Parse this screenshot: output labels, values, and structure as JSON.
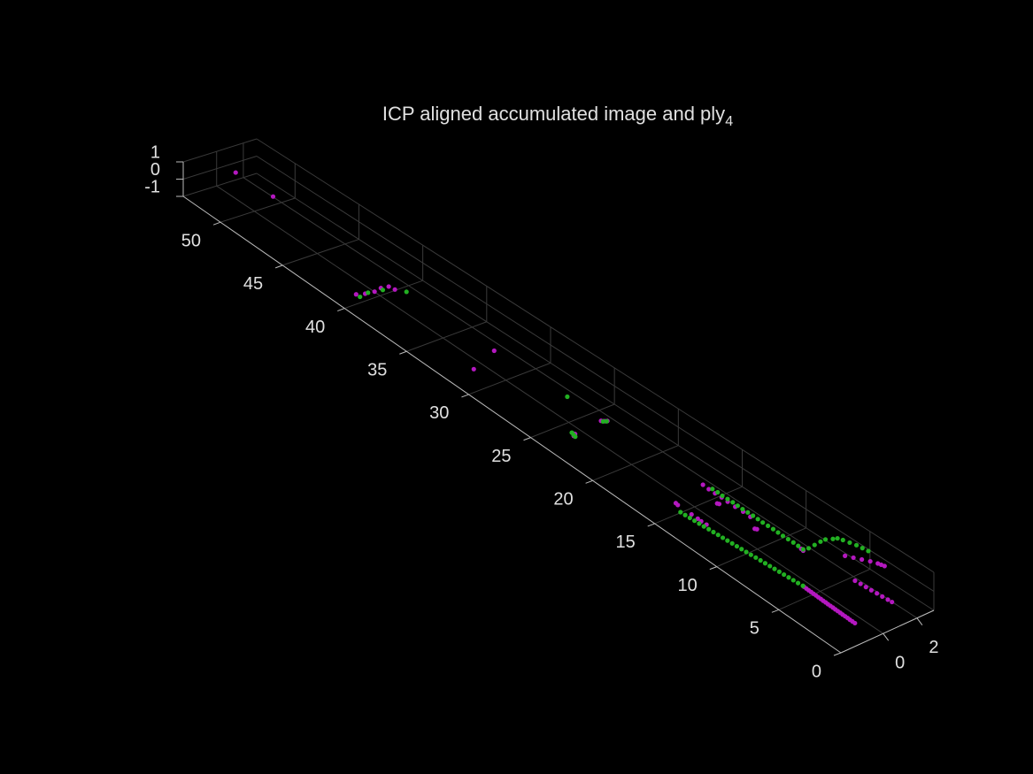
{
  "chart_data": {
    "type": "scatter3d",
    "title": "ICP aligned accumulated image and ply",
    "title_subscript": "4",
    "xlim": [
      -2.5,
      3
    ],
    "xticks": [
      0,
      2
    ],
    "ylim": [
      0,
      53
    ],
    "yticks": [
      0,
      5,
      10,
      15,
      20,
      25,
      30,
      35,
      40,
      45,
      50
    ],
    "zlim": [
      -1,
      1
    ],
    "zticks": [
      1,
      0,
      -1
    ],
    "grid": true,
    "series": [
      {
        "color": "#b418c0",
        "points": [
          [
            0.67,
            52.2,
            0
          ],
          [
            0.73,
            49.3,
            0
          ],
          [
            -2.21,
            39.4,
            0
          ],
          [
            -1.75,
            39.2,
            0
          ],
          [
            -1.18,
            39.1,
            0
          ],
          [
            -0.65,
            39.2,
            0
          ],
          [
            -0.19,
            39.1,
            0
          ],
          [
            -0.11,
            38.7,
            0
          ],
          [
            0.23,
            31.2,
            0
          ],
          [
            -1.82,
            30.4,
            0
          ],
          [
            -1.72,
            22.5,
            0
          ],
          [
            -1.6,
            22.7,
            0
          ],
          [
            -1.55,
            22.6,
            0
          ],
          [
            0.3,
            22.8,
            0
          ],
          [
            0.38,
            22.7,
            0
          ],
          [
            0.45,
            22.65,
            0
          ],
          [
            0.55,
            22.6,
            0
          ],
          [
            0.53,
            15.0,
            0
          ],
          [
            0.5,
            14.5,
            0
          ],
          [
            0.5,
            14.0,
            0
          ],
          [
            0.52,
            13.5,
            0
          ],
          [
            0.5,
            13.0,
            0
          ],
          [
            0.5,
            12.4,
            0
          ],
          [
            0.52,
            11.8,
            0
          ],
          [
            0.5,
            11.2,
            0
          ],
          [
            0.0,
            13.2,
            0
          ],
          [
            0.05,
            13.1,
            0
          ],
          [
            -0.01,
            10.2,
            0
          ],
          [
            0.05,
            10.1,
            0
          ],
          [
            0.57,
            7.1,
            0
          ],
          [
            0.6,
            7.3,
            0
          ],
          [
            -1.57,
            14.5,
            0
          ],
          [
            -1.6,
            14.3,
            0
          ],
          [
            -1.6,
            13.2,
            0
          ],
          [
            -1.6,
            12.7,
            0
          ],
          [
            -1.62,
            12.4,
            0
          ],
          [
            -1.6,
            12.0,
            0
          ],
          [
            -1.36,
            4.5,
            0
          ],
          [
            -1.37,
            4.3,
            0
          ],
          [
            -1.38,
            4.1,
            0
          ],
          [
            -1.38,
            3.9,
            0
          ],
          [
            -1.39,
            3.7,
            0
          ],
          [
            -1.39,
            3.5,
            0
          ],
          [
            -1.4,
            3.3,
            0
          ],
          [
            -1.4,
            3.1,
            0
          ],
          [
            -1.41,
            2.9,
            0
          ],
          [
            -1.41,
            2.7,
            0
          ],
          [
            -1.42,
            2.5,
            0
          ],
          [
            -1.42,
            2.3,
            0
          ],
          [
            -1.42,
            2.1,
            0
          ],
          [
            -1.43,
            1.9,
            0
          ],
          [
            -1.43,
            1.7,
            0
          ],
          [
            -1.43,
            1.5,
            0
          ],
          [
            -1.44,
            1.3,
            0
          ],
          [
            -1.44,
            1.1,
            0
          ],
          [
            -1.44,
            0.9,
            0
          ],
          [
            -1.45,
            0.7,
            0
          ],
          [
            -1.45,
            0.5,
            0
          ],
          [
            -1.45,
            0.3,
            0
          ],
          [
            0.8,
            3.3,
            0
          ],
          [
            0.83,
            2.9,
            0
          ],
          [
            0.85,
            2.5,
            0
          ],
          [
            0.87,
            2.1,
            0
          ],
          [
            0.9,
            1.7,
            0
          ],
          [
            0.92,
            1.3,
            0
          ],
          [
            0.95,
            0.9,
            0
          ],
          [
            0.97,
            0.6,
            0
          ],
          [
            1.8,
            5.4,
            0
          ],
          [
            2.0,
            5.0,
            0
          ],
          [
            2.2,
            4.6,
            0
          ],
          [
            2.4,
            4.2,
            0
          ],
          [
            2.55,
            3.8,
            0
          ],
          [
            2.6,
            3.6,
            0
          ],
          [
            2.65,
            3.4,
            0
          ]
        ]
      },
      {
        "color": "#22b022",
        "points": [
          [
            -2.2,
            39.1,
            0
          ],
          [
            -1.55,
            39.2,
            0
          ],
          [
            -0.69,
            39.0,
            0
          ],
          [
            0.26,
            38.2,
            0
          ],
          [
            0.4,
            25.6,
            0
          ],
          [
            -1.65,
            22.6,
            0
          ],
          [
            -1.6,
            22.8,
            0
          ],
          [
            -1.7,
            22.4,
            0
          ],
          [
            0.35,
            22.7,
            0
          ],
          [
            0.5,
            22.6,
            0
          ],
          [
            -1.9,
            13.7,
            0
          ],
          [
            -1.88,
            13.35,
            0
          ],
          [
            -1.86,
            13.0,
            0
          ],
          [
            -1.84,
            12.65,
            0
          ],
          [
            -1.82,
            12.3,
            0
          ],
          [
            -1.8,
            11.95,
            0
          ],
          [
            -1.77,
            11.6,
            0
          ],
          [
            -1.75,
            11.25,
            0
          ],
          [
            -1.73,
            10.9,
            0
          ],
          [
            -1.71,
            10.55,
            0
          ],
          [
            -1.69,
            10.2,
            0
          ],
          [
            -1.67,
            9.85,
            0
          ],
          [
            -1.65,
            9.5,
            0
          ],
          [
            -1.63,
            9.15,
            0
          ],
          [
            -1.61,
            8.8,
            0
          ],
          [
            -1.59,
            8.45,
            0
          ],
          [
            -1.56,
            8.1,
            0
          ],
          [
            -1.54,
            7.75,
            0
          ],
          [
            -1.52,
            7.4,
            0
          ],
          [
            -1.5,
            7.05,
            0
          ],
          [
            -1.48,
            6.7,
            0
          ],
          [
            -1.46,
            6.35,
            0
          ],
          [
            -1.44,
            6.0,
            0
          ],
          [
            -1.42,
            5.65,
            0
          ],
          [
            -1.4,
            5.3,
            0
          ],
          [
            -1.38,
            4.95,
            0
          ],
          [
            -1.35,
            4.6,
            0
          ],
          [
            0.65,
            14.4,
            0
          ],
          [
            0.66,
            14.0,
            0
          ],
          [
            0.64,
            13.6,
            0
          ],
          [
            0.65,
            13.2,
            0
          ],
          [
            0.66,
            12.8,
            0
          ],
          [
            0.65,
            12.4,
            0
          ],
          [
            0.64,
            12.0,
            0
          ],
          [
            0.65,
            11.6,
            0
          ],
          [
            0.66,
            11.2,
            0
          ],
          [
            0.65,
            10.8,
            0
          ],
          [
            0.64,
            10.4,
            0
          ],
          [
            0.65,
            10.0,
            0
          ],
          [
            0.66,
            9.6,
            0
          ],
          [
            0.65,
            9.2,
            0
          ],
          [
            0.64,
            8.8,
            0
          ],
          [
            0.65,
            8.4,
            0
          ],
          [
            0.66,
            8.0,
            0
          ],
          [
            0.65,
            7.6,
            0
          ],
          [
            0.64,
            7.2,
            0
          ],
          [
            0.9,
            7.1,
            0
          ],
          [
            1.3,
            7.15,
            0
          ],
          [
            1.7,
            7.2,
            0
          ],
          [
            2.0,
            7.2,
            0
          ],
          [
            2.3,
            7.0,
            0
          ],
          [
            2.5,
            6.9,
            0
          ],
          [
            2.6,
            6.6,
            0
          ],
          [
            2.7,
            6.2,
            0
          ],
          [
            2.8,
            5.8,
            0
          ],
          [
            2.85,
            5.4,
            0
          ],
          [
            2.9,
            5.0,
            0
          ]
        ]
      }
    ]
  }
}
